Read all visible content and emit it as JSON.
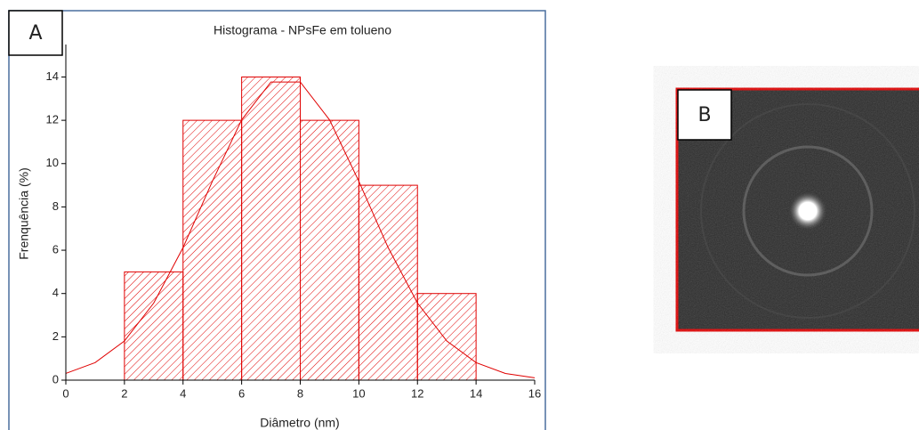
{
  "panel_labels": [
    "A",
    "B"
  ],
  "chart_data": {
    "type": "histogram",
    "title": "Histograma - NPsFe em tolueno",
    "xlabel": "Diâmetro (nm)",
    "ylabel": "Frenquência (%)",
    "bins": [
      2,
      4,
      6,
      8,
      10,
      12,
      14
    ],
    "values": [
      5,
      12,
      14,
      12,
      9,
      4
    ],
    "color": "#e00000",
    "fit": {
      "x": [
        0,
        1,
        2,
        3,
        4,
        5,
        6,
        7,
        8,
        9,
        10,
        11,
        12,
        13,
        14,
        15,
        16
      ],
      "values": [
        0.31,
        0.81,
        1.81,
        3.56,
        6.12,
        9.18,
        12.02,
        13.77,
        13.77,
        12.02,
        9.18,
        6.12,
        3.56,
        1.81,
        0.81,
        0.31,
        0.11
      ],
      "color": "#e00000"
    },
    "xlim": [
      0,
      16
    ],
    "ylim": [
      0,
      15.5
    ],
    "xticks": [
      0,
      2,
      4,
      6,
      8,
      10,
      12,
      14,
      16
    ],
    "yticks": [
      0,
      2,
      4,
      6,
      8,
      10,
      12,
      14
    ]
  }
}
